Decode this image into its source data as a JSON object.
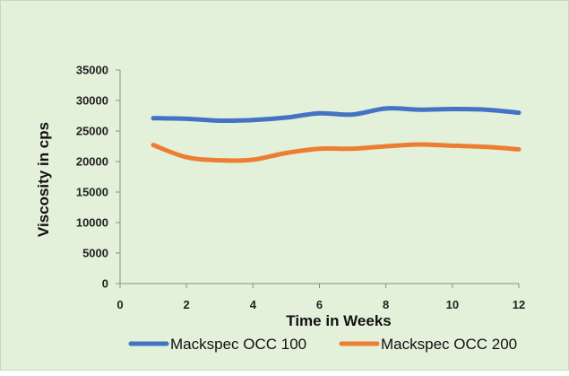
{
  "chart_data": {
    "type": "line",
    "title": "",
    "xlabel": "Time in Weeks",
    "ylabel": "Viscosity in cps",
    "xlim": [
      0,
      12
    ],
    "ylim": [
      0,
      35000
    ],
    "x_ticks": [
      0,
      2,
      4,
      6,
      8,
      10,
      12
    ],
    "y_ticks": [
      0,
      5000,
      10000,
      15000,
      20000,
      25000,
      30000,
      35000
    ],
    "grid": false,
    "legend": "bottom",
    "series": [
      {
        "name": "Mackspec OCC 100",
        "color": "#4472c4",
        "x": [
          1,
          2,
          3,
          4,
          5,
          6,
          7,
          8,
          9,
          10,
          11,
          12
        ],
        "y": [
          27100,
          27000,
          26700,
          26800,
          27200,
          27900,
          27700,
          28700,
          28500,
          28600,
          28500,
          28000
        ]
      },
      {
        "name": "Mackspec OCC 200",
        "color": "#ed7d31",
        "x": [
          1,
          2,
          3,
          4,
          5,
          6,
          7,
          8,
          9,
          10,
          11,
          12
        ],
        "y": [
          22700,
          20700,
          20200,
          20300,
          21400,
          22100,
          22100,
          22500,
          22800,
          22600,
          22400,
          22000
        ]
      }
    ]
  }
}
